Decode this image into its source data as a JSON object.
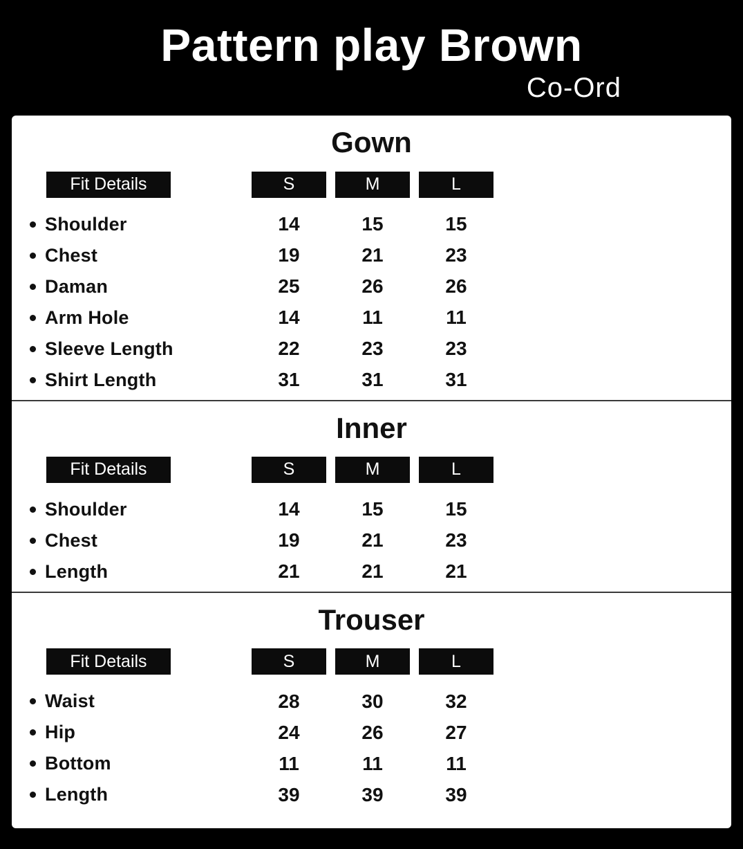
{
  "header": {
    "title": "Pattern play Brown",
    "subtitle": "Co-Ord"
  },
  "sections": [
    {
      "title": "Gown",
      "fit_details_label": "Fit Details",
      "sizes": [
        "S",
        "M",
        "L"
      ],
      "rows": [
        {
          "label": "Shoulder",
          "values": [
            "14",
            "15",
            "15"
          ]
        },
        {
          "label": "Chest",
          "values": [
            "19",
            "21",
            "23"
          ]
        },
        {
          "label": "Daman",
          "values": [
            "25",
            "26",
            "26"
          ]
        },
        {
          "label": "Arm Hole",
          "values": [
            "14",
            "11",
            "11"
          ]
        },
        {
          "label": "Sleeve Length",
          "values": [
            "22",
            "23",
            "23"
          ]
        },
        {
          "label": "Shirt Length",
          "values": [
            "31",
            "31",
            "31"
          ]
        }
      ]
    },
    {
      "title": "Inner",
      "fit_details_label": "Fit Details",
      "sizes": [
        "S",
        "M",
        "L"
      ],
      "rows": [
        {
          "label": "Shoulder",
          "values": [
            "14",
            "15",
            "15"
          ]
        },
        {
          "label": "Chest",
          "values": [
            "19",
            "21",
            "23"
          ]
        },
        {
          "label": "Length",
          "values": [
            "21",
            "21",
            "21"
          ]
        }
      ]
    },
    {
      "title": "Trouser",
      "fit_details_label": "Fit Details",
      "sizes": [
        "S",
        "M",
        "L"
      ],
      "rows": [
        {
          "label": "Waist",
          "values": [
            "28",
            "30",
            "32"
          ]
        },
        {
          "label": "Hip",
          "values": [
            "24",
            "26",
            "27"
          ]
        },
        {
          "label": "Bottom",
          "values": [
            "11",
            "11",
            "11"
          ]
        },
        {
          "label": "Length",
          "values": [
            "39",
            "39",
            "39"
          ]
        }
      ]
    }
  ],
  "colors": {
    "bg": "#000000",
    "panel": "#ffffff",
    "badge_bg": "#0c0c0c",
    "badge_text": "#ffffff",
    "text": "#111111",
    "divider": "#3a3a3a"
  }
}
